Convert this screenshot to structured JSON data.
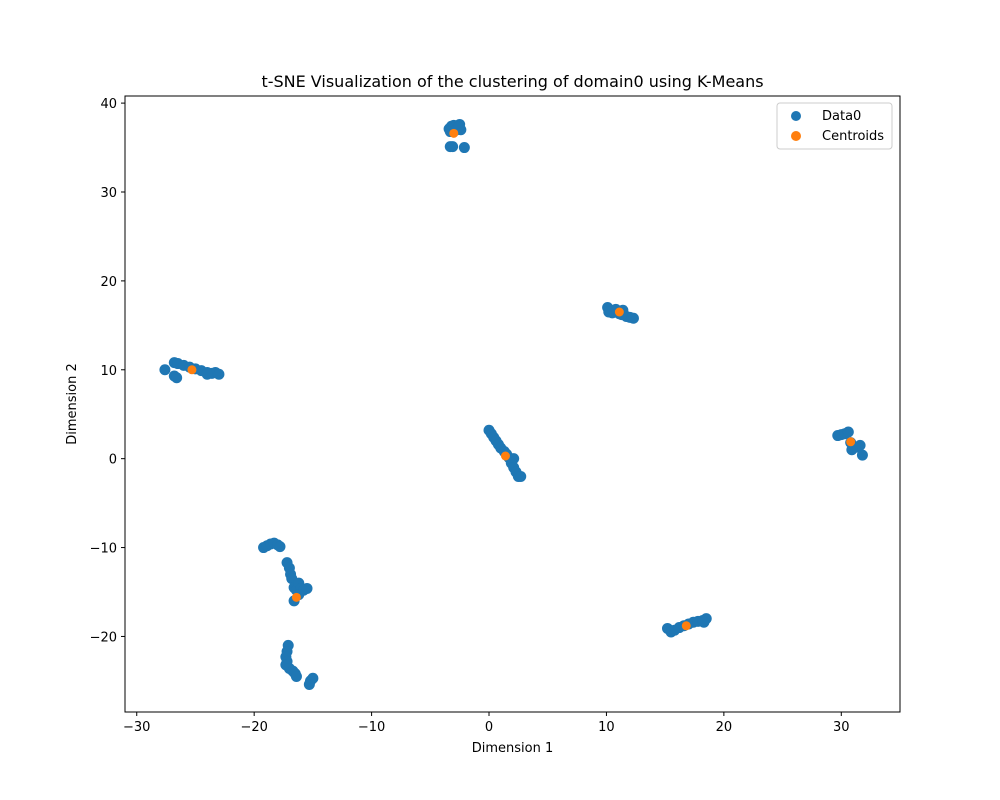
{
  "chart_data": {
    "type": "scatter",
    "title": "t-SNE Visualization of the clustering of domain0 using K-Means",
    "xlabel": "Dimension 1",
    "ylabel": "Dimension 2",
    "xlim": [
      -31,
      35
    ],
    "ylim": [
      -28.5,
      40.8
    ],
    "xticks": [
      -30,
      -20,
      -10,
      0,
      10,
      20,
      30
    ],
    "yticks": [
      -20,
      -10,
      0,
      10,
      20,
      30,
      40
    ],
    "xtick_labels": [
      "−30",
      "−20",
      "−10",
      "0",
      "10",
      "20",
      "30"
    ],
    "ytick_labels": [
      "−20",
      "−10",
      "0",
      "10",
      "20",
      "30",
      "40"
    ],
    "grid": false,
    "legend_position": "top-right",
    "series": [
      {
        "name": "Data0",
        "color": "#1f77b4",
        "points": [
          [
            -3.4,
            37.1
          ],
          [
            -3.2,
            37.4
          ],
          [
            -3.0,
            37.5
          ],
          [
            -2.7,
            37.2
          ],
          [
            -2.5,
            37.6
          ],
          [
            -2.4,
            37.0
          ],
          [
            -3.3,
            36.8
          ],
          [
            -2.9,
            36.9
          ],
          [
            -3.1,
            35.1
          ],
          [
            -3.3,
            35.1
          ],
          [
            -2.1,
            35.0
          ],
          [
            -2.6,
            37.3
          ],
          [
            10.1,
            17.0
          ],
          [
            10.3,
            16.7
          ],
          [
            10.5,
            16.4
          ],
          [
            10.8,
            16.8
          ],
          [
            11.1,
            16.3
          ],
          [
            11.4,
            16.7
          ],
          [
            11.7,
            16.0
          ],
          [
            12.0,
            15.9
          ],
          [
            12.3,
            15.8
          ],
          [
            10.2,
            16.5
          ],
          [
            11.3,
            16.2
          ],
          [
            -27.6,
            10.0
          ],
          [
            -26.8,
            10.8
          ],
          [
            -26.5,
            10.7
          ],
          [
            -26.0,
            10.5
          ],
          [
            -25.5,
            10.3
          ],
          [
            -25.0,
            10.1
          ],
          [
            -24.5,
            9.9
          ],
          [
            -24.0,
            9.7
          ],
          [
            -23.6,
            9.6
          ],
          [
            -23.3,
            9.7
          ],
          [
            -23.0,
            9.5
          ],
          [
            -26.8,
            9.3
          ],
          [
            -26.6,
            9.1
          ],
          [
            -24.0,
            9.5
          ],
          [
            0.0,
            3.2
          ],
          [
            0.2,
            2.8
          ],
          [
            0.4,
            2.4
          ],
          [
            0.6,
            2.0
          ],
          [
            0.8,
            1.6
          ],
          [
            1.0,
            1.2
          ],
          [
            1.3,
            0.8
          ],
          [
            1.5,
            0.5
          ],
          [
            1.7,
            0.1
          ],
          [
            2.1,
            0.0
          ],
          [
            1.9,
            -0.5
          ],
          [
            2.1,
            -1.0
          ],
          [
            2.3,
            -1.5
          ],
          [
            2.5,
            -2.0
          ],
          [
            2.7,
            -2.0
          ],
          [
            29.7,
            2.6
          ],
          [
            30.0,
            2.7
          ],
          [
            30.3,
            2.8
          ],
          [
            30.6,
            3.0
          ],
          [
            30.8,
            1.8
          ],
          [
            31.0,
            1.2
          ],
          [
            31.3,
            1.3
          ],
          [
            31.6,
            1.5
          ],
          [
            31.8,
            0.4
          ],
          [
            30.9,
            1.0
          ],
          [
            -19.2,
            -10.0
          ],
          [
            -18.9,
            -9.8
          ],
          [
            -18.6,
            -9.6
          ],
          [
            -18.3,
            -9.5
          ],
          [
            -18.0,
            -9.7
          ],
          [
            -17.8,
            -9.9
          ],
          [
            -17.2,
            -11.7
          ],
          [
            -17.0,
            -12.3
          ],
          [
            -16.9,
            -13.0
          ],
          [
            -16.8,
            -13.5
          ],
          [
            -16.6,
            -14.5
          ],
          [
            -16.4,
            -14.8
          ],
          [
            -16.2,
            -14.0
          ],
          [
            -16.0,
            -14.6
          ],
          [
            -15.8,
            -14.8
          ],
          [
            -15.5,
            -14.6
          ],
          [
            -16.6,
            -16.0
          ],
          [
            -16.2,
            -15.3
          ],
          [
            -17.1,
            -21.0
          ],
          [
            -17.2,
            -21.7
          ],
          [
            -17.3,
            -22.3
          ],
          [
            -17.2,
            -22.8
          ],
          [
            -17.3,
            -23.2
          ],
          [
            -17.0,
            -23.6
          ],
          [
            -16.7,
            -23.9
          ],
          [
            -16.5,
            -24.2
          ],
          [
            -16.4,
            -24.5
          ],
          [
            -15.2,
            -25.0
          ],
          [
            -15.0,
            -24.7
          ],
          [
            -15.3,
            -25.4
          ],
          [
            15.2,
            -19.1
          ],
          [
            15.5,
            -19.5
          ],
          [
            15.8,
            -19.3
          ],
          [
            16.2,
            -19.0
          ],
          [
            16.6,
            -18.8
          ],
          [
            17.0,
            -18.6
          ],
          [
            17.4,
            -18.4
          ],
          [
            17.8,
            -18.3
          ],
          [
            18.2,
            -18.2
          ],
          [
            18.5,
            -18.0
          ],
          [
            18.3,
            -18.4
          ]
        ]
      },
      {
        "name": "Centroids",
        "color": "#ff7f0e",
        "points": [
          [
            -3.0,
            36.6
          ],
          [
            11.1,
            16.5
          ],
          [
            -25.3,
            10.0
          ],
          [
            1.4,
            0.3
          ],
          [
            30.8,
            1.9
          ],
          [
            -16.4,
            -15.6
          ],
          [
            16.8,
            -18.8
          ]
        ]
      }
    ]
  }
}
